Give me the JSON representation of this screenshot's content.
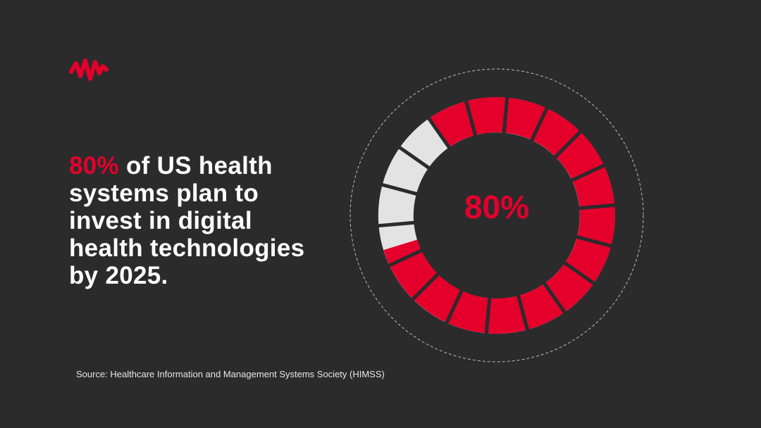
{
  "headline": {
    "highlight": "80%",
    "text": "of US health systems plan to invest in digital health technologies by 2025."
  },
  "source": "Source: Healthcare Information and Management Systems Society (HIMSS)",
  "chart_data": {
    "type": "donut",
    "values": [
      80
    ],
    "value_labels": [
      "80%"
    ],
    "total": 100,
    "color": "#e4002b",
    "rest_color": "#e3e3e3",
    "segments": 18
  }
}
